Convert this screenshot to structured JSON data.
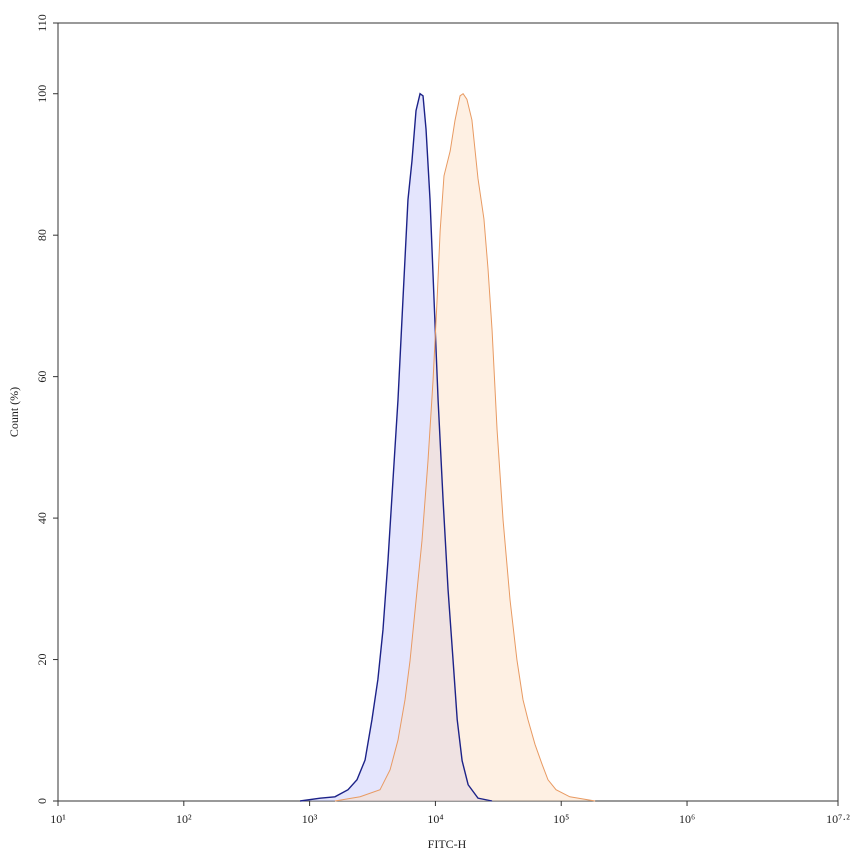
{
  "chart_data": {
    "type": "histogram-overlay",
    "x_label": "FITC-H",
    "y_label": "Count (%)",
    "log_scale_x": true,
    "grid": false,
    "xlim": [
      10,
      15848931.924611142
    ],
    "ylim": [
      0,
      110
    ],
    "xticks": [
      {
        "value": 10,
        "label": "10¹"
      },
      {
        "value": 100,
        "label": "10²"
      },
      {
        "value": 1000,
        "label": "10³"
      },
      {
        "value": 10000,
        "label": "10⁴"
      },
      {
        "value": 100000,
        "label": "10⁵"
      },
      {
        "value": 1000000,
        "label": "10⁶"
      },
      {
        "value": 15848931.924611142,
        "label": "10⁷·²"
      }
    ],
    "yticks": [
      0,
      20,
      40,
      60,
      80,
      100,
      110
    ],
    "series": [
      {
        "color": "#1c2288",
        "fill_color": "rgba(195,198,250,0.45)",
        "x": [
          840,
          1210,
          1590,
          2020,
          2380,
          2760,
          3130,
          3490,
          3830,
          4200,
          4600,
          5040,
          5520,
          6050,
          6510,
          7010,
          7550,
          7970,
          8420,
          9060,
          9750,
          10500,
          11500,
          12600,
          13800,
          14900,
          16300,
          18200,
          21800,
          28200
        ],
        "values": [
          0,
          0.4,
          0.6,
          1.6,
          3.0,
          5.8,
          11.5,
          17.2,
          24.2,
          34.1,
          45.4,
          56.7,
          70.9,
          85.0,
          90.5,
          97.6,
          100,
          99.7,
          95,
          85,
          70.9,
          56.7,
          42.6,
          29.9,
          20,
          11.5,
          5.7,
          2.3,
          0.4,
          0
        ]
      },
      {
        "color": "#e89a62",
        "fill_color": "rgba(252,222,192,0.45)",
        "x": [
          1590,
          2520,
          3630,
          4360,
          5040,
          5730,
          6280,
          7010,
          7820,
          8730,
          9570,
          10300,
          10900,
          11700,
          13100,
          14300,
          15700,
          16600,
          17800,
          19500,
          21800,
          24300,
          26200,
          28200,
          30900,
          34500,
          39200,
          44500,
          49700,
          54400,
          61900,
          70400,
          78500,
          90900,
          117000,
          186000
        ],
        "values": [
          0,
          0.6,
          1.6,
          4.4,
          8.6,
          14.3,
          19.8,
          28.3,
          36.8,
          48.1,
          59.4,
          70.7,
          80.6,
          88.4,
          91.9,
          96.2,
          99.7,
          100,
          99.2,
          96.3,
          88.0,
          82.3,
          75.2,
          66.6,
          52.5,
          39.7,
          28.4,
          19.9,
          14.3,
          11.5,
          8.0,
          5.2,
          3.0,
          1.6,
          0.6,
          0
        ]
      }
    ]
  }
}
